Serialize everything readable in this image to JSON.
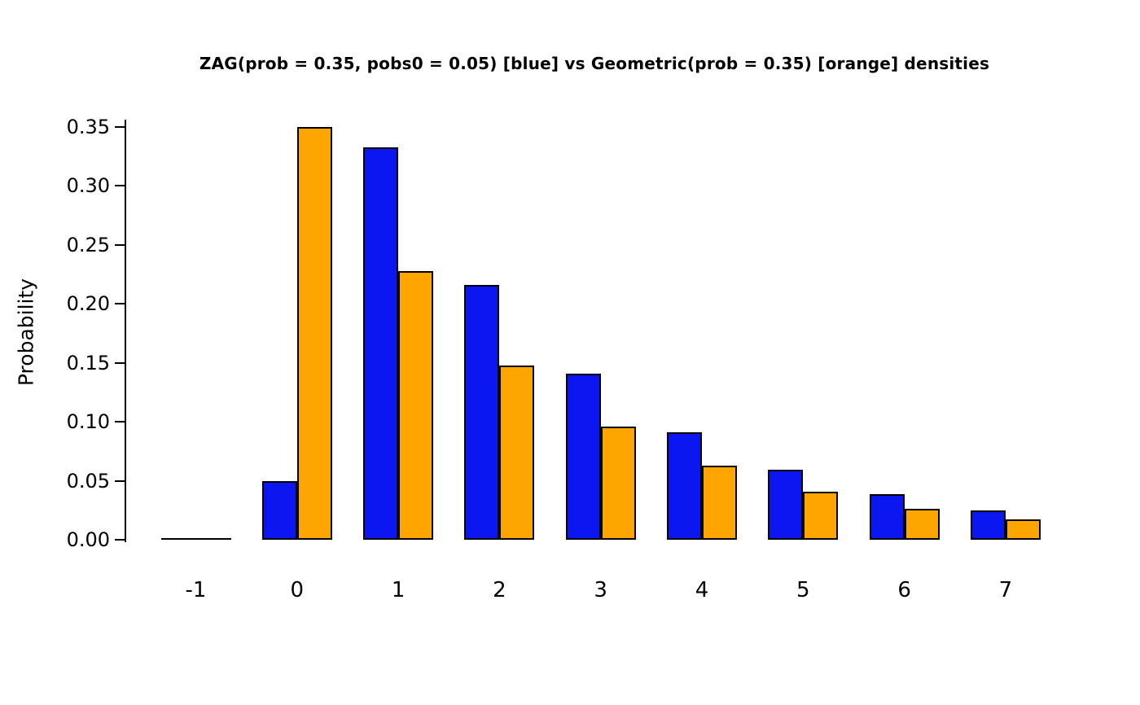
{
  "chart_data": {
    "type": "bar",
    "title": "ZAG(prob = 0.35, pobs0 = 0.05) [blue] vs Geometric(prob = 0.35) [orange] densities",
    "xlabel": "",
    "ylabel": "Probability",
    "categories": [
      "-1",
      "0",
      "1",
      "2",
      "3",
      "4",
      "5",
      "6",
      "7"
    ],
    "series": [
      {
        "name": "ZAG(prob = 0.35, pobs0 = 0.05)",
        "color": "#0b16f0",
        "values": [
          0,
          0.05,
          0.3325,
          0.2161,
          0.1405,
          0.0913,
          0.0594,
          0.0386,
          0.0251
        ]
      },
      {
        "name": "Geometric(prob = 0.35)",
        "color": "#FFA500",
        "values": [
          0,
          0.35,
          0.2275,
          0.1479,
          0.0961,
          0.0625,
          0.0406,
          0.0264,
          0.0172
        ]
      }
    ],
    "ylim": [
      0,
      0.35
    ],
    "yticks": [
      "0.00",
      "0.05",
      "0.10",
      "0.15",
      "0.20",
      "0.25",
      "0.30",
      "0.35"
    ],
    "grid": false,
    "legend": "none",
    "bar_border_color": "#000000",
    "background_color": "#ffffff"
  }
}
